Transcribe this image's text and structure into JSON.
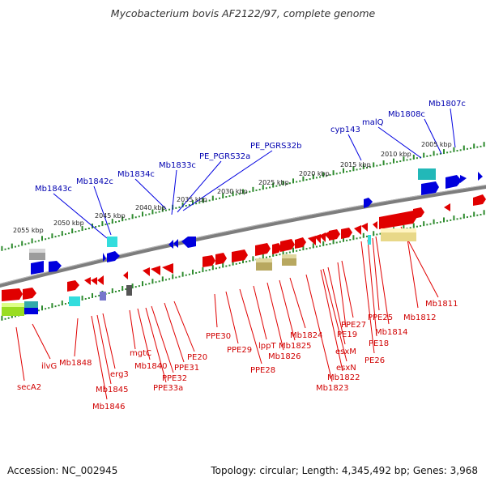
{
  "title": "Mycobacterium bovis AF2122/97, complete genome",
  "accession_text": "Accession: NC_002945",
  "summary_text": "Topology: circular; Length: 4,345,492 bp; Genes: 3,968",
  "colors": {
    "backbone": "#7a7a7a",
    "ruler": "#2e8b2e",
    "gene_forward": "#e00000",
    "label_top": "#0000b0",
    "label_bottom": "#d00000"
  },
  "scale_labels": [
    "2005 kbp",
    "2010 kbp",
    "2015 kbp",
    "2020 kbp",
    "2025 kbp",
    "2030 kbp",
    "2035 kbp",
    "2040 kbp",
    "2045 kbp",
    "2050 kbp",
    "2055 kbp"
  ],
  "top_labels": [
    "Mb1807c",
    "Mb1808c",
    "malQ",
    "cyp143",
    "PE_PGRS32b",
    "PE_PGRS32a",
    "Mb1833c",
    "Mb1834c",
    "Mb1842c",
    "Mb1843c"
  ],
  "bottom_labels": [
    "Mb1811",
    "Mb1812",
    "Mb1814",
    "PPE25",
    "PPE27",
    "PE18",
    "PE26",
    "PE19",
    "esxM",
    "esxN",
    "Mb1822",
    "Mb1823",
    "Mb1824",
    "Mb1825",
    "Mb1826",
    "lppT",
    "PPE28",
    "PPE29",
    "PPE30",
    "PE20",
    "PPE31",
    "PPE32",
    "PPE33a",
    "Mb1840",
    "mgtC",
    "erg3",
    "Mb1845",
    "Mb1846",
    "Mb1848",
    "ilvG",
    "secA2"
  ]
}
